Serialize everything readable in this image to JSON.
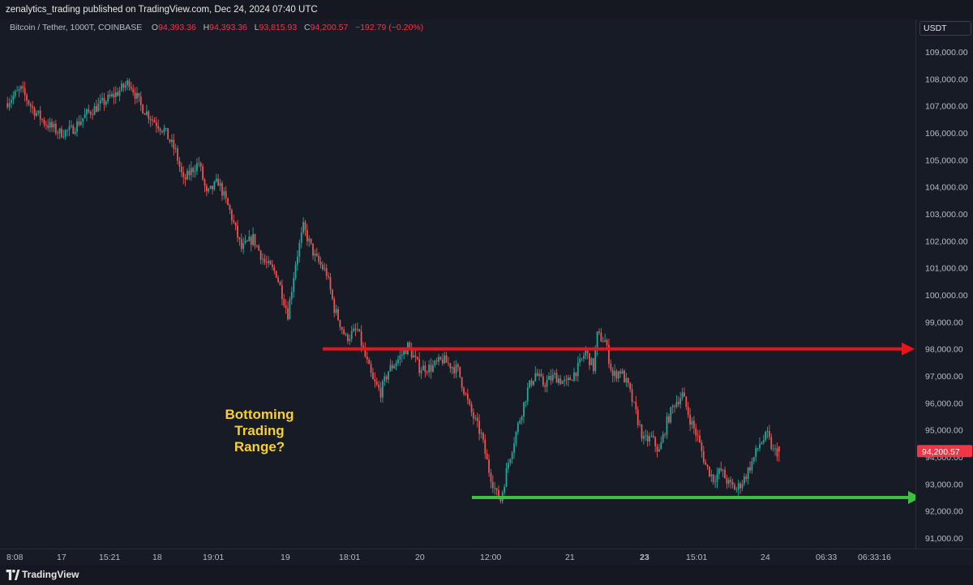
{
  "header": {
    "publisher": "zenalytics_trading",
    "published_text": "published on TradingView.com, Dec 24, 2024 07:40 UTC"
  },
  "legend": {
    "symbol": "Bitcoin / Tether, 1000T, COINBASE",
    "open_label": "O",
    "open": "94,393.36",
    "high_label": "H",
    "high": "94,393.36",
    "low_label": "L",
    "low": "93,815.93",
    "close_label": "C",
    "close": "94,200.57",
    "change": "−192.79 (−0.20%)"
  },
  "currency": "USDT",
  "current_price_label": "94,200.57",
  "annotation": {
    "lines": [
      "Bottoming",
      "Trading",
      "Range?"
    ]
  },
  "footer": {
    "brand": "TradingView"
  },
  "colors": {
    "background": "#171b26",
    "up": "#26a69a",
    "down": "#ef5350",
    "resistance": "#e8141a",
    "support": "#3fbf3f",
    "annotation": "#f7d02e",
    "price_badge": "#f23645"
  },
  "chart_data": {
    "type": "candlestick",
    "y_axis": {
      "ticks": [
        109000,
        108000,
        107000,
        106000,
        105000,
        104000,
        103000,
        102000,
        101000,
        100000,
        99000,
        98000,
        97000,
        96000,
        95000,
        94000,
        93000,
        92000,
        91000
      ],
      "tick_labels": [
        "109,000.00",
        "108,000.00",
        "107,000.00",
        "106,000.00",
        "105,000.00",
        "104,000.00",
        "103,000.00",
        "102,000.00",
        "101,000.00",
        "100,000.00",
        "99,000.00",
        "98,000.00",
        "97,000.00",
        "96,000.00",
        "95,000.00",
        "94,000.00",
        "93,000.00",
        "92,000.00",
        "91,000.00"
      ],
      "ylim": [
        90300,
        110000
      ]
    },
    "x_axis": {
      "tick_labels": [
        "8:08",
        "17",
        "15:21",
        "18",
        "19:01",
        "19",
        "18:01",
        "20",
        "12:00",
        "21",
        "23",
        "15:01",
        "24",
        "06:33",
        "06:33:16"
      ],
      "bold": [
        "23"
      ]
    },
    "price_path": [
      [
        0,
        107100
      ],
      [
        8,
        107600
      ],
      [
        14,
        106900
      ],
      [
        20,
        106400
      ],
      [
        28,
        106000
      ],
      [
        34,
        106100
      ],
      [
        42,
        106700
      ],
      [
        50,
        107100
      ],
      [
        58,
        107500
      ],
      [
        64,
        107900
      ],
      [
        70,
        107000
      ],
      [
        76,
        106500
      ],
      [
        82,
        106100
      ],
      [
        88,
        105300
      ],
      [
        92,
        104200
      ],
      [
        96,
        104600
      ],
      [
        100,
        104900
      ],
      [
        104,
        103700
      ],
      [
        110,
        104200
      ],
      [
        116,
        103100
      ],
      [
        122,
        101700
      ],
      [
        128,
        102100
      ],
      [
        134,
        101200
      ],
      [
        140,
        100800
      ],
      [
        146,
        99300
      ],
      [
        150,
        101200
      ],
      [
        154,
        102500
      ],
      [
        160,
        101400
      ],
      [
        166,
        100800
      ],
      [
        170,
        99500
      ],
      [
        176,
        98400
      ],
      [
        182,
        98700
      ],
      [
        186,
        97700
      ],
      [
        190,
        96800
      ],
      [
        194,
        96400
      ],
      [
        198,
        97200
      ],
      [
        204,
        97700
      ],
      [
        208,
        98100
      ],
      [
        214,
        97300
      ],
      [
        220,
        97300
      ],
      [
        226,
        97600
      ],
      [
        234,
        97200
      ],
      [
        240,
        95800
      ],
      [
        246,
        94800
      ],
      [
        250,
        93500
      ],
      [
        254,
        92600
      ],
      [
        256,
        92400
      ],
      [
        260,
        93800
      ],
      [
        264,
        94900
      ],
      [
        270,
        96500
      ],
      [
        274,
        97100
      ],
      [
        278,
        96700
      ],
      [
        284,
        97000
      ],
      [
        290,
        96700
      ],
      [
        296,
        97300
      ],
      [
        300,
        97900
      ],
      [
        304,
        97300
      ],
      [
        306,
        98500
      ],
      [
        310,
        98300
      ],
      [
        314,
        97000
      ],
      [
        318,
        97200
      ],
      [
        322,
        96600
      ],
      [
        326,
        95600
      ],
      [
        330,
        94600
      ],
      [
        334,
        94700
      ],
      [
        338,
        94200
      ],
      [
        342,
        95300
      ],
      [
        346,
        96000
      ],
      [
        350,
        96300
      ],
      [
        354,
        95400
      ],
      [
        358,
        94700
      ],
      [
        362,
        93700
      ],
      [
        366,
        93200
      ],
      [
        370,
        93500
      ],
      [
        374,
        93000
      ],
      [
        378,
        92800
      ],
      [
        382,
        93200
      ],
      [
        386,
        93800
      ],
      [
        390,
        94500
      ],
      [
        394,
        94800
      ],
      [
        397,
        94200
      ],
      [
        400,
        94200
      ]
    ],
    "last": {
      "open": 94393.36,
      "high": 94393.36,
      "low": 93815.93,
      "close": 94200.57,
      "change": -192.79,
      "change_pct": -0.2
    },
    "annotations": [
      {
        "type": "horizontal-arrow",
        "level": 98000,
        "color": "#e8141a",
        "meaning": "resistance"
      },
      {
        "type": "horizontal-arrow",
        "level": 92500,
        "color": "#3fbf3f",
        "meaning": "support"
      }
    ],
    "grid": false,
    "candle_count": 400
  }
}
